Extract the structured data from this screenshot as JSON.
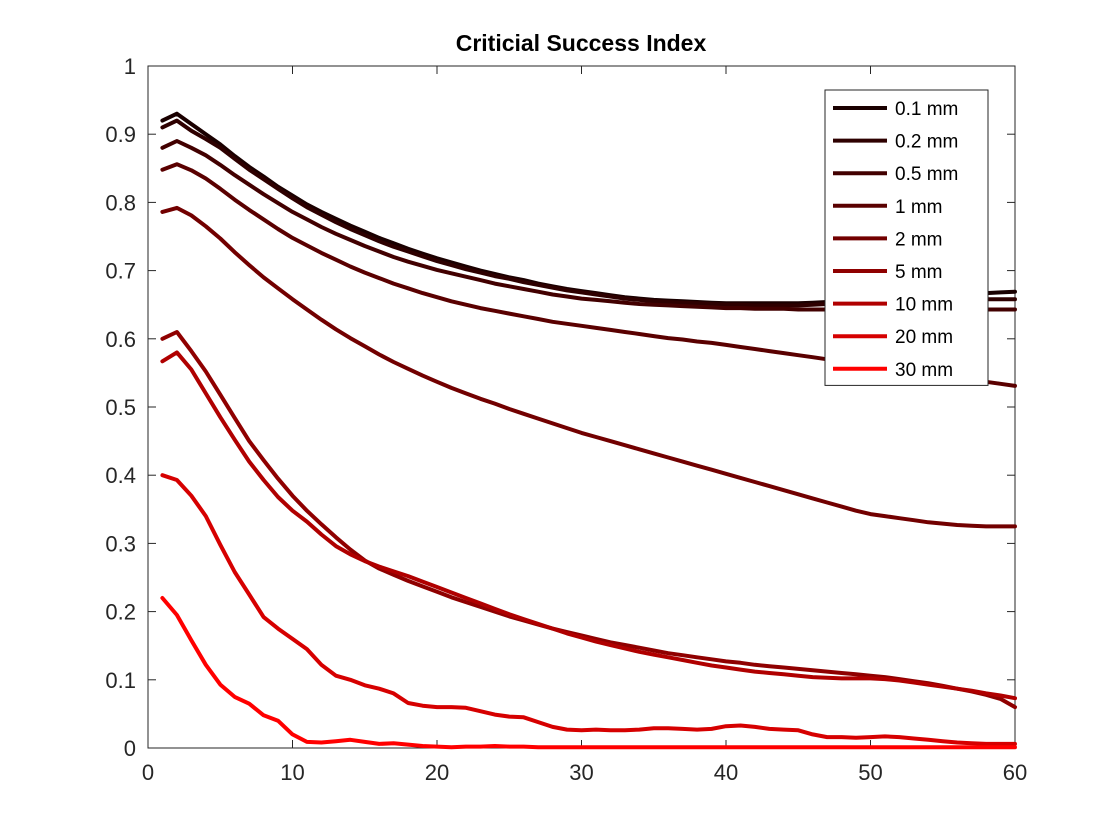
{
  "chart_data": {
    "type": "line",
    "title": "Criticial Success Index",
    "xlabel": "",
    "ylabel": "",
    "xlim": [
      0,
      60
    ],
    "ylim": [
      0,
      1
    ],
    "xticks": [
      "0",
      "10",
      "20",
      "30",
      "40",
      "50",
      "60"
    ],
    "yticks": [
      "0",
      "0.1",
      "0.2",
      "0.3",
      "0.4",
      "0.5",
      "0.6",
      "0.7",
      "0.8",
      "0.9",
      "1"
    ],
    "grid": false,
    "legend_position": "top-right",
    "x": [
      1,
      2,
      3,
      4,
      5,
      6,
      7,
      8,
      9,
      10,
      11,
      12,
      13,
      14,
      15,
      16,
      17,
      18,
      19,
      20,
      21,
      22,
      23,
      24,
      25,
      26,
      27,
      28,
      29,
      30,
      31,
      32,
      33,
      34,
      35,
      36,
      37,
      38,
      39,
      40,
      41,
      42,
      43,
      44,
      45,
      46,
      47,
      48,
      49,
      50,
      51,
      52,
      53,
      54,
      55,
      56,
      57,
      58,
      59,
      60
    ],
    "series": [
      {
        "name": "0.1 mm",
        "color": "#1a0000",
        "values": [
          0.92,
          0.93,
          0.915,
          0.9,
          0.885,
          0.868,
          0.852,
          0.838,
          0.823,
          0.81,
          0.797,
          0.786,
          0.776,
          0.766,
          0.757,
          0.748,
          0.74,
          0.732,
          0.725,
          0.718,
          0.712,
          0.706,
          0.7,
          0.695,
          0.69,
          0.686,
          0.681,
          0.677,
          0.673,
          0.67,
          0.667,
          0.664,
          0.661,
          0.659,
          0.657,
          0.656,
          0.655,
          0.654,
          0.653,
          0.652,
          0.652,
          0.652,
          0.652,
          0.652,
          0.652,
          0.653,
          0.654,
          0.656,
          0.658,
          0.659,
          0.66,
          0.661,
          0.662,
          0.663,
          0.664,
          0.665,
          0.666,
          0.667,
          0.668,
          0.669
        ]
      },
      {
        "name": "0.2 mm",
        "color": "#2e0000",
        "values": [
          0.91,
          0.92,
          0.905,
          0.893,
          0.88,
          0.864,
          0.848,
          0.834,
          0.82,
          0.806,
          0.793,
          0.782,
          0.771,
          0.761,
          0.752,
          0.743,
          0.735,
          0.728,
          0.721,
          0.714,
          0.708,
          0.702,
          0.697,
          0.692,
          0.688,
          0.683,
          0.679,
          0.675,
          0.671,
          0.668,
          0.665,
          0.662,
          0.659,
          0.657,
          0.655,
          0.654,
          0.653,
          0.652,
          0.651,
          0.65,
          0.65,
          0.649,
          0.649,
          0.649,
          0.649,
          0.65,
          0.651,
          0.652,
          0.653,
          0.654,
          0.654,
          0.655,
          0.655,
          0.656,
          0.656,
          0.657,
          0.657,
          0.658,
          0.658,
          0.658
        ]
      },
      {
        "name": "0.5 mm",
        "color": "#420000",
        "values": [
          0.88,
          0.89,
          0.88,
          0.869,
          0.855,
          0.84,
          0.826,
          0.812,
          0.799,
          0.786,
          0.775,
          0.764,
          0.754,
          0.745,
          0.736,
          0.728,
          0.72,
          0.713,
          0.707,
          0.701,
          0.696,
          0.691,
          0.686,
          0.681,
          0.677,
          0.673,
          0.669,
          0.665,
          0.662,
          0.659,
          0.657,
          0.655,
          0.653,
          0.651,
          0.65,
          0.649,
          0.648,
          0.647,
          0.646,
          0.645,
          0.645,
          0.644,
          0.644,
          0.644,
          0.643,
          0.643,
          0.643,
          0.643,
          0.643,
          0.643,
          0.643,
          0.643,
          0.643,
          0.643,
          0.643,
          0.643,
          0.643,
          0.643,
          0.643,
          0.643
        ]
      },
      {
        "name": "1 mm",
        "color": "#5a0000",
        "values": [
          0.848,
          0.856,
          0.847,
          0.835,
          0.82,
          0.804,
          0.789,
          0.775,
          0.761,
          0.748,
          0.737,
          0.726,
          0.716,
          0.706,
          0.697,
          0.689,
          0.681,
          0.674,
          0.667,
          0.661,
          0.655,
          0.65,
          0.645,
          0.641,
          0.637,
          0.633,
          0.629,
          0.625,
          0.622,
          0.619,
          0.616,
          0.613,
          0.61,
          0.607,
          0.604,
          0.601,
          0.599,
          0.596,
          0.594,
          0.591,
          0.588,
          0.585,
          0.582,
          0.579,
          0.576,
          0.573,
          0.57,
          0.567,
          0.564,
          0.561,
          0.558,
          0.555,
          0.552,
          0.549,
          0.546,
          0.543,
          0.54,
          0.537,
          0.534,
          0.531
        ]
      },
      {
        "name": "2 mm",
        "color": "#720000",
        "values": [
          0.786,
          0.792,
          0.781,
          0.765,
          0.747,
          0.727,
          0.708,
          0.69,
          0.674,
          0.658,
          0.643,
          0.628,
          0.614,
          0.601,
          0.589,
          0.577,
          0.566,
          0.556,
          0.546,
          0.537,
          0.528,
          0.52,
          0.512,
          0.505,
          0.497,
          0.49,
          0.483,
          0.476,
          0.469,
          0.462,
          0.456,
          0.45,
          0.444,
          0.438,
          0.432,
          0.426,
          0.42,
          0.414,
          0.408,
          0.402,
          0.396,
          0.39,
          0.384,
          0.378,
          0.372,
          0.366,
          0.36,
          0.354,
          0.348,
          0.343,
          0.34,
          0.337,
          0.334,
          0.331,
          0.329,
          0.327,
          0.326,
          0.325,
          0.325,
          0.325
        ]
      },
      {
        "name": "5 mm",
        "color": "#8f0000",
        "values": [
          0.6,
          0.61,
          0.582,
          0.552,
          0.518,
          0.484,
          0.45,
          0.422,
          0.395,
          0.37,
          0.348,
          0.328,
          0.309,
          0.291,
          0.275,
          0.263,
          0.254,
          0.245,
          0.237,
          0.229,
          0.221,
          0.214,
          0.207,
          0.2,
          0.193,
          0.187,
          0.181,
          0.175,
          0.17,
          0.165,
          0.16,
          0.155,
          0.151,
          0.147,
          0.143,
          0.139,
          0.136,
          0.133,
          0.13,
          0.127,
          0.125,
          0.122,
          0.12,
          0.118,
          0.116,
          0.114,
          0.112,
          0.11,
          0.108,
          0.106,
          0.104,
          0.101,
          0.098,
          0.095,
          0.091,
          0.087,
          0.083,
          0.078,
          0.072,
          0.06
        ]
      },
      {
        "name": "10 mm",
        "color": "#b00000",
        "values": [
          0.567,
          0.58,
          0.555,
          0.52,
          0.485,
          0.452,
          0.42,
          0.393,
          0.368,
          0.348,
          0.332,
          0.313,
          0.296,
          0.284,
          0.274,
          0.266,
          0.259,
          0.252,
          0.244,
          0.236,
          0.228,
          0.22,
          0.212,
          0.204,
          0.196,
          0.189,
          0.182,
          0.175,
          0.168,
          0.162,
          0.156,
          0.151,
          0.146,
          0.141,
          0.137,
          0.133,
          0.129,
          0.125,
          0.121,
          0.118,
          0.115,
          0.112,
          0.11,
          0.108,
          0.106,
          0.104,
          0.103,
          0.102,
          0.102,
          0.102,
          0.101,
          0.099,
          0.096,
          0.093,
          0.09,
          0.087,
          0.084,
          0.08,
          0.077,
          0.073
        ]
      },
      {
        "name": "20 mm",
        "color": "#d60000",
        "values": [
          0.4,
          0.393,
          0.37,
          0.34,
          0.298,
          0.258,
          0.225,
          0.192,
          0.175,
          0.16,
          0.145,
          0.122,
          0.106,
          0.1,
          0.092,
          0.087,
          0.08,
          0.066,
          0.062,
          0.06,
          0.06,
          0.059,
          0.054,
          0.049,
          0.046,
          0.045,
          0.038,
          0.031,
          0.027,
          0.026,
          0.027,
          0.026,
          0.026,
          0.027,
          0.029,
          0.029,
          0.028,
          0.027,
          0.028,
          0.032,
          0.033,
          0.031,
          0.028,
          0.027,
          0.026,
          0.02,
          0.016,
          0.016,
          0.015,
          0.016,
          0.017,
          0.016,
          0.014,
          0.012,
          0.01,
          0.008,
          0.007,
          0.006,
          0.006,
          0.006
        ]
      },
      {
        "name": "30 mm",
        "color": "#ff0000",
        "values": [
          0.22,
          0.195,
          0.158,
          0.122,
          0.093,
          0.075,
          0.065,
          0.048,
          0.04,
          0.02,
          0.009,
          0.008,
          0.01,
          0.012,
          0.009,
          0.006,
          0.007,
          0.005,
          0.003,
          0.002,
          0.001,
          0.002,
          0.002,
          0.003,
          0.002,
          0.002,
          0.001,
          0.001,
          0.001,
          0.001,
          0.001,
          0.001,
          0.001,
          0.001,
          0.001,
          0.001,
          0.001,
          0.001,
          0.001,
          0.001,
          0.001,
          0.001,
          0.001,
          0.001,
          0.001,
          0.001,
          0.001,
          0.001,
          0.001,
          0.001,
          0.001,
          0.001,
          0.001,
          0.001,
          0.001,
          0.001,
          0.001,
          0.001,
          0.001,
          0.001
        ]
      }
    ]
  }
}
